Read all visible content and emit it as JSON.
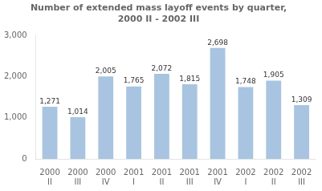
{
  "chart_data": {
    "type": "bar",
    "title": "Number of extended mass layoff events by quarter,\n2000 II - 2002 III",
    "categories": [
      [
        "2000",
        "II"
      ],
      [
        "2000",
        "III"
      ],
      [
        "2000",
        "IV"
      ],
      [
        "2001",
        "I"
      ],
      [
        "2001",
        "II"
      ],
      [
        "2001",
        "III"
      ],
      [
        "2001",
        "IV"
      ],
      [
        "2002",
        "I"
      ],
      [
        "2002",
        "II"
      ],
      [
        "2002",
        "III"
      ]
    ],
    "values": [
      1271,
      1014,
      2005,
      1765,
      2072,
      1815,
      2698,
      1748,
      1905,
      1309
    ],
    "value_labels": [
      "1,271",
      "1,014",
      "2,005",
      "1,765",
      "2,072",
      "1,815",
      "2,698",
      "1,748",
      "1,905",
      "1,309"
    ],
    "data_labels": true,
    "color": "#a8c4e0",
    "ylim": [
      0,
      3000
    ],
    "yticks": [
      0,
      {
        "value": 1000,
        "label": "1,000"
      },
      {
        "value": 2000,
        "label": "2,000"
      },
      {
        "value": 3000,
        "label": "3,000"
      }
    ],
    "grid": false
  }
}
